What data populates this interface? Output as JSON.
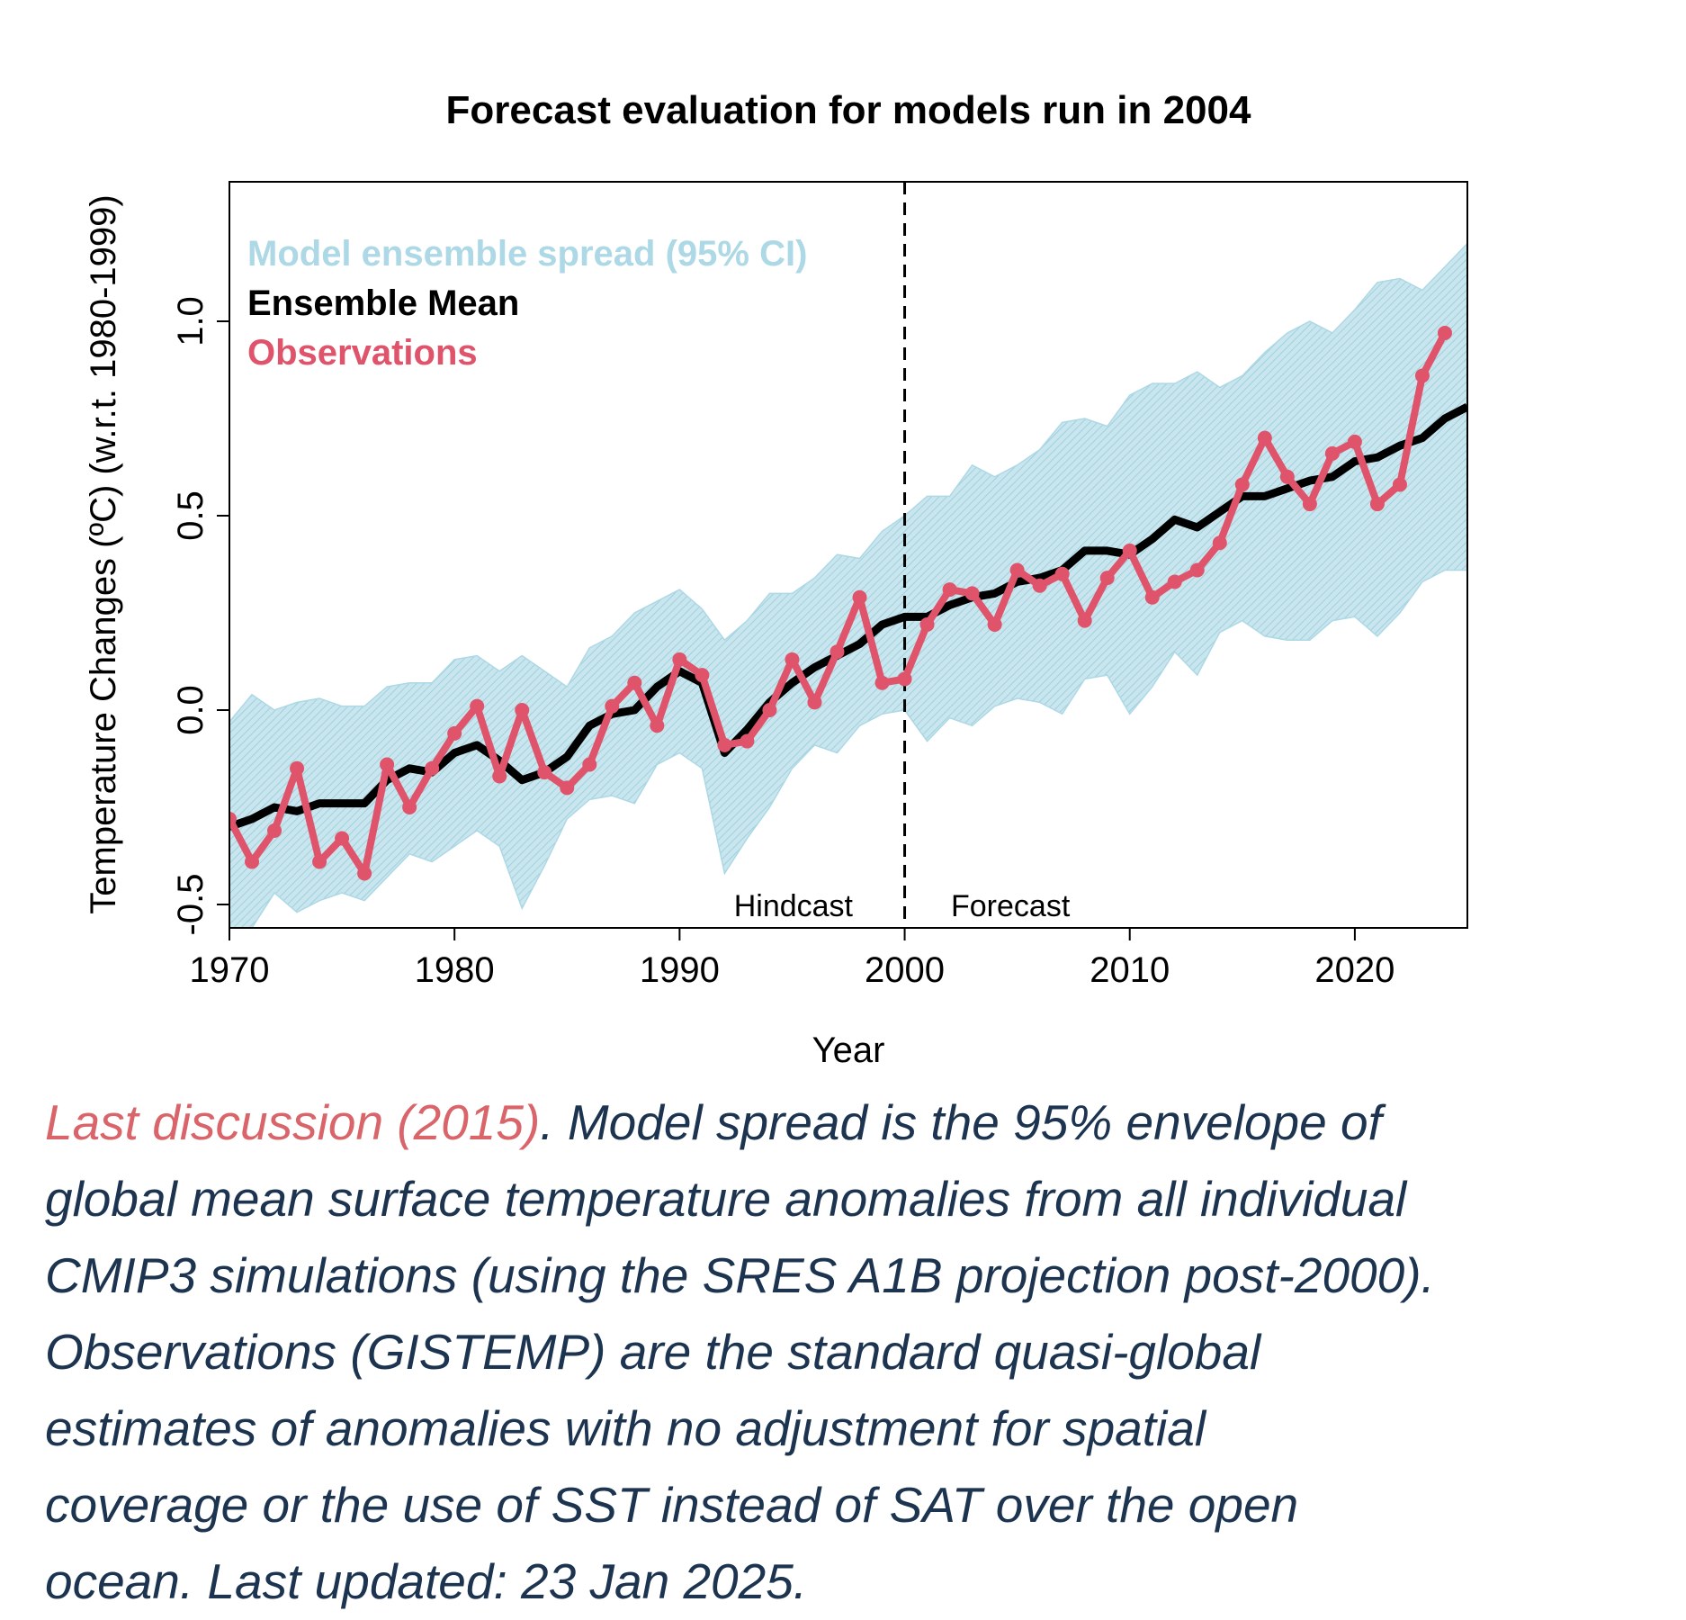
{
  "chart_data": {
    "type": "line",
    "title": "Forecast evaluation for models run in 2004",
    "xlabel": "Year",
    "ylabel": "Temperature Changes (ºC) (w.r.t. 1980-1999)",
    "xlim": [
      1970,
      2025
    ],
    "ylim": [
      -0.56,
      1.36
    ],
    "xticks": [
      1970,
      1980,
      1990,
      2000,
      2010,
      2020
    ],
    "xtick_labels": [
      "1970",
      "1980",
      "1990",
      "2000",
      "2010",
      "2020"
    ],
    "yticks": [
      -0.5,
      0.0,
      0.5,
      1.0
    ],
    "ytick_labels": [
      "-0.5",
      "0.0",
      "0.5",
      "1.0"
    ],
    "grid": false,
    "legend_placement": "top-left",
    "legend": [
      "Model ensemble spread (95% CI)",
      "Ensemble Mean",
      "Observations"
    ],
    "annotations": {
      "divider_year": 2000,
      "left_label": "Hindcast",
      "right_label": "Forecast"
    },
    "colors": {
      "spread": "#add8e6",
      "mean": "#000000",
      "observations": "#df536b"
    },
    "spread": {
      "x": [
        1970,
        1971,
        1972,
        1973,
        1974,
        1975,
        1976,
        1977,
        1978,
        1979,
        1980,
        1981,
        1982,
        1983,
        1984,
        1985,
        1986,
        1987,
        1988,
        1989,
        1990,
        1991,
        1992,
        1993,
        1994,
        1995,
        1996,
        1997,
        1998,
        1999,
        2000,
        2001,
        2002,
        2003,
        2004,
        2005,
        2006,
        2007,
        2008,
        2009,
        2010,
        2011,
        2012,
        2013,
        2014,
        2015,
        2016,
        2017,
        2018,
        2019,
        2020,
        2021,
        2022,
        2023,
        2024,
        2025
      ],
      "upper": [
        -0.03,
        0.04,
        0.0,
        0.02,
        0.03,
        0.01,
        0.01,
        0.06,
        0.07,
        0.07,
        0.13,
        0.14,
        0.1,
        0.14,
        0.1,
        0.06,
        0.16,
        0.19,
        0.25,
        0.28,
        0.31,
        0.26,
        0.18,
        0.23,
        0.3,
        0.3,
        0.34,
        0.4,
        0.39,
        0.46,
        0.5,
        0.55,
        0.55,
        0.63,
        0.6,
        0.63,
        0.67,
        0.74,
        0.75,
        0.73,
        0.81,
        0.84,
        0.84,
        0.87,
        0.83,
        0.86,
        0.92,
        0.97,
        1.0,
        0.97,
        1.03,
        1.1,
        1.11,
        1.08,
        1.14,
        1.2
      ],
      "lower": [
        -0.56,
        -0.56,
        -0.47,
        -0.52,
        -0.49,
        -0.47,
        -0.49,
        -0.43,
        -0.37,
        -0.39,
        -0.35,
        -0.31,
        -0.35,
        -0.51,
        -0.4,
        -0.28,
        -0.23,
        -0.22,
        -0.24,
        -0.14,
        -0.11,
        -0.15,
        -0.42,
        -0.33,
        -0.25,
        -0.15,
        -0.09,
        -0.11,
        -0.04,
        -0.01,
        0.0,
        -0.08,
        -0.02,
        -0.04,
        0.01,
        0.03,
        0.02,
        -0.01,
        0.08,
        0.09,
        -0.01,
        0.06,
        0.15,
        0.09,
        0.2,
        0.23,
        0.19,
        0.18,
        0.18,
        0.23,
        0.24,
        0.19,
        0.25,
        0.33,
        0.36,
        0.36
      ]
    },
    "series": [
      {
        "name": "Ensemble Mean",
        "x": [
          1970,
          1971,
          1972,
          1973,
          1974,
          1975,
          1976,
          1977,
          1978,
          1979,
          1980,
          1981,
          1982,
          1983,
          1984,
          1985,
          1986,
          1987,
          1988,
          1989,
          1990,
          1991,
          1992,
          1993,
          1994,
          1995,
          1996,
          1997,
          1998,
          1999,
          2000,
          2001,
          2002,
          2003,
          2004,
          2005,
          2006,
          2007,
          2008,
          2009,
          2010,
          2011,
          2012,
          2013,
          2014,
          2015,
          2016,
          2017,
          2018,
          2019,
          2020,
          2021,
          2022,
          2023,
          2024,
          2025
        ],
        "values": [
          -0.3,
          -0.28,
          -0.25,
          -0.26,
          -0.24,
          -0.24,
          -0.24,
          -0.18,
          -0.15,
          -0.16,
          -0.11,
          -0.09,
          -0.13,
          -0.18,
          -0.16,
          -0.12,
          -0.04,
          -0.01,
          0.0,
          0.06,
          0.1,
          0.07,
          -0.11,
          -0.05,
          0.02,
          0.07,
          0.11,
          0.14,
          0.17,
          0.22,
          0.24,
          0.24,
          0.27,
          0.29,
          0.3,
          0.33,
          0.34,
          0.36,
          0.41,
          0.41,
          0.4,
          0.44,
          0.49,
          0.47,
          0.51,
          0.55,
          0.55,
          0.57,
          0.59,
          0.6,
          0.64,
          0.65,
          0.68,
          0.7,
          0.75,
          0.78
        ]
      },
      {
        "name": "Observations",
        "x": [
          1970,
          1971,
          1972,
          1973,
          1974,
          1975,
          1976,
          1977,
          1978,
          1979,
          1980,
          1981,
          1982,
          1983,
          1984,
          1985,
          1986,
          1987,
          1988,
          1989,
          1990,
          1991,
          1992,
          1993,
          1994,
          1995,
          1996,
          1997,
          1998,
          1999,
          2000,
          2001,
          2002,
          2003,
          2004,
          2005,
          2006,
          2007,
          2008,
          2009,
          2010,
          2011,
          2012,
          2013,
          2014,
          2015,
          2016,
          2017,
          2018,
          2019,
          2020,
          2021,
          2022,
          2023,
          2024
        ],
        "values": [
          -0.28,
          -0.39,
          -0.31,
          -0.15,
          -0.39,
          -0.33,
          -0.42,
          -0.14,
          -0.25,
          -0.15,
          -0.06,
          0.01,
          -0.17,
          0.0,
          -0.16,
          -0.2,
          -0.14,
          0.01,
          0.07,
          -0.04,
          0.13,
          0.09,
          -0.09,
          -0.08,
          0.0,
          0.13,
          0.02,
          0.15,
          0.29,
          0.07,
          0.08,
          0.22,
          0.31,
          0.3,
          0.22,
          0.36,
          0.32,
          0.35,
          0.23,
          0.34,
          0.41,
          0.29,
          0.33,
          0.36,
          0.43,
          0.58,
          0.7,
          0.6,
          0.53,
          0.66,
          0.69,
          0.53,
          0.58,
          0.86,
          0.97
        ]
      }
    ]
  },
  "caption": {
    "link": "Last discussion (2015)",
    "lines": [
      ". Model spread is the 95% envelope of",
      "global mean surface temperature anomalies from all individual",
      "CMIP3 simulations (using the SRES A1B projection post-2000).",
      "Observations (GISTEMP) are the standard quasi-global",
      "estimates of anomalies with no adjustment for spatial",
      "coverage or the use of SST instead of SAT over the open",
      "ocean. Last updated: 23 Jan 2025."
    ]
  }
}
